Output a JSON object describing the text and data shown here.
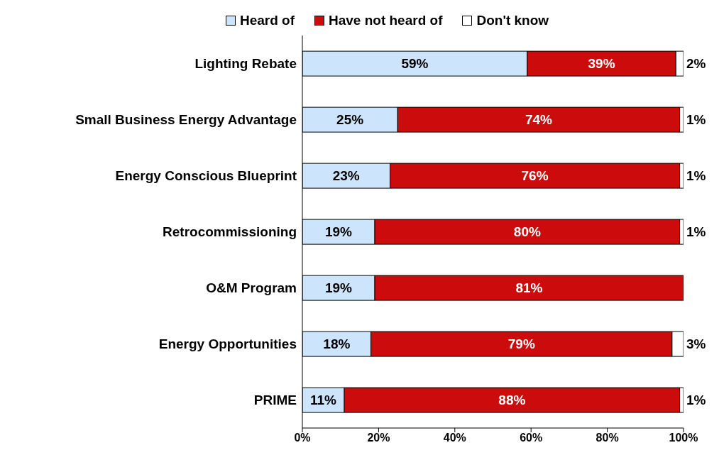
{
  "chart_data": {
    "type": "bar",
    "orientation": "horizontal",
    "stacked": true,
    "categories": [
      "Lighting Rebate",
      "Small Business Energy Advantage",
      "Energy Conscious Blueprint",
      "Retrocommissioning",
      "O&M Program",
      "Energy Opportunities",
      "PRIME"
    ],
    "series": [
      {
        "name": "Heard of",
        "color": "#cce4fc",
        "values": [
          59,
          25,
          23,
          19,
          19,
          18,
          11
        ],
        "value_labels": [
          "59%",
          "25%",
          "23%",
          "19%",
          "19%",
          "18%",
          "11%"
        ]
      },
      {
        "name": "Have not heard of",
        "color": "#cc0c0c",
        "values": [
          39,
          74,
          76,
          80,
          81,
          79,
          88
        ],
        "value_labels": [
          "39%",
          "74%",
          "76%",
          "80%",
          "81%",
          "79%",
          "88%"
        ]
      },
      {
        "name": "Don't know",
        "color": "#ffffff",
        "values": [
          2,
          1,
          1,
          1,
          0,
          3,
          1
        ],
        "value_labels": [
          "2%",
          "1%",
          "1%",
          "1%",
          null,
          "3%",
          "1%"
        ]
      }
    ],
    "xlim": [
      0,
      100
    ],
    "xticks": [
      {
        "value": 0,
        "label": "0%"
      },
      {
        "value": 20,
        "label": "20%"
      },
      {
        "value": 40,
        "label": "40%"
      },
      {
        "value": 60,
        "label": "60%"
      },
      {
        "value": 80,
        "label": "80%"
      },
      {
        "value": 100,
        "label": "100%"
      }
    ],
    "grid": false,
    "legend": "top"
  }
}
